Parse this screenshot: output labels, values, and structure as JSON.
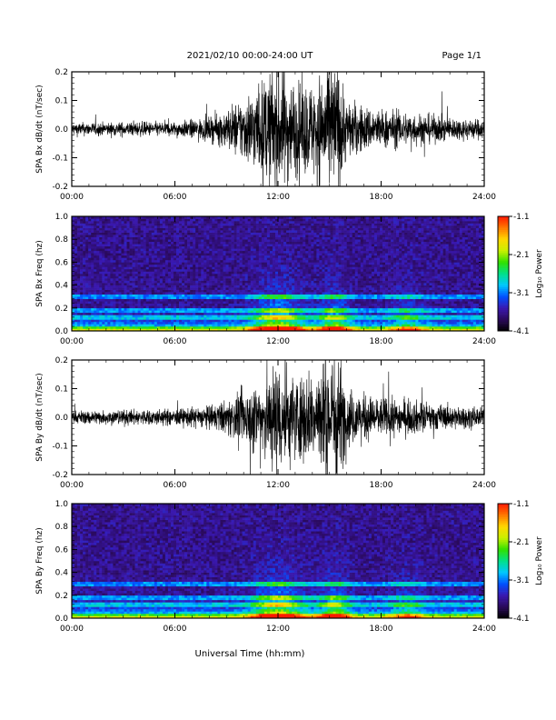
{
  "header": {
    "title": "2021/02/10  00:00-24:00 UT",
    "page_label": "Page 1/1"
  },
  "x_axis": {
    "title": "Universal Time (hh:mm)",
    "range_hours": [
      0,
      24
    ],
    "ticks": [
      0,
      6,
      12,
      18,
      24
    ],
    "tick_labels": [
      "00:00",
      "06:00",
      "12:00",
      "18:00",
      "24:00"
    ]
  },
  "colorbar": {
    "label": "Log₁₀ Power",
    "range": [
      -4.1,
      -1.1
    ],
    "ticks": [
      -1.1,
      -2.1,
      -3.1,
      -4.1
    ],
    "tick_labels": [
      "-1.1",
      "-2.1",
      "-3.1",
      "-4.1"
    ],
    "colors": [
      "#000000",
      "#2a0a5a",
      "#3a18b0",
      "#0050ff",
      "#00c8ff",
      "#00e08a",
      "#30e000",
      "#c8f000",
      "#ffd800",
      "#ff7a00",
      "#ff1a00"
    ]
  },
  "chart_data": [
    {
      "type": "line",
      "panel": "bx_time_series",
      "ylabel": "SPA Bx dB/dt (nT/sec)",
      "ylim": [
        -0.2,
        0.2
      ],
      "y_ticks": [
        -0.2,
        -0.1,
        0.0,
        0.1,
        0.2
      ],
      "y_tick_labels": [
        "-0.2",
        "-0.1",
        "0.0",
        "0.1",
        "0.2"
      ],
      "x_hours": [
        0,
        2,
        4,
        6,
        8,
        9,
        10,
        11,
        12,
        13,
        14,
        15,
        15.5,
        16,
        17,
        18,
        20,
        22,
        24
      ],
      "envelope_amplitude": [
        0.02,
        0.02,
        0.022,
        0.022,
        0.035,
        0.06,
        0.1,
        0.14,
        0.2,
        0.14,
        0.14,
        0.2,
        0.2,
        0.09,
        0.07,
        0.06,
        0.05,
        0.035,
        0.03
      ],
      "line_color": "#000000"
    },
    {
      "type": "heatmap",
      "panel": "bx_spectrogram",
      "ylabel": "SPA Bx Freq (hz)",
      "ylim": [
        0.0,
        1.0
      ],
      "y_ticks": [
        0.0,
        0.2,
        0.4,
        0.6,
        0.8,
        1.0
      ],
      "y_tick_labels": [
        "0.0",
        "0.2",
        "0.4",
        "0.6",
        "0.8",
        "1.0"
      ],
      "value_range": [
        -4.1,
        -1.1
      ],
      "persistent_lines_hz": [
        0.3,
        0.18,
        0.12
      ]
    },
    {
      "type": "line",
      "panel": "by_time_series",
      "ylabel": "SPA By dB/dt (nT/sec)",
      "ylim": [
        -0.2,
        0.2
      ],
      "y_ticks": [
        -0.2,
        -0.1,
        0.0,
        0.1,
        0.2
      ],
      "y_tick_labels": [
        "-0.2",
        "-0.1",
        "0.0",
        "0.1",
        "0.2"
      ],
      "x_hours": [
        0,
        2,
        4,
        6,
        8,
        9,
        10,
        11,
        12,
        13,
        14,
        15,
        15.5,
        16,
        17,
        18,
        20,
        22,
        24
      ],
      "envelope_amplitude": [
        0.02,
        0.022,
        0.024,
        0.025,
        0.035,
        0.05,
        0.08,
        0.12,
        0.18,
        0.13,
        0.14,
        0.2,
        0.2,
        0.09,
        0.07,
        0.06,
        0.05,
        0.035,
        0.03
      ],
      "line_color": "#000000"
    },
    {
      "type": "heatmap",
      "panel": "by_spectrogram",
      "ylabel": "SPA By Freq (hz)",
      "ylim": [
        0.0,
        1.0
      ],
      "y_ticks": [
        0.0,
        0.2,
        0.4,
        0.6,
        0.8,
        1.0
      ],
      "y_tick_labels": [
        "0.0",
        "0.2",
        "0.4",
        "0.6",
        "0.8",
        "1.0"
      ],
      "value_range": [
        -4.1,
        -1.1
      ],
      "persistent_lines_hz": [
        0.3,
        0.18,
        0.12
      ]
    }
  ]
}
